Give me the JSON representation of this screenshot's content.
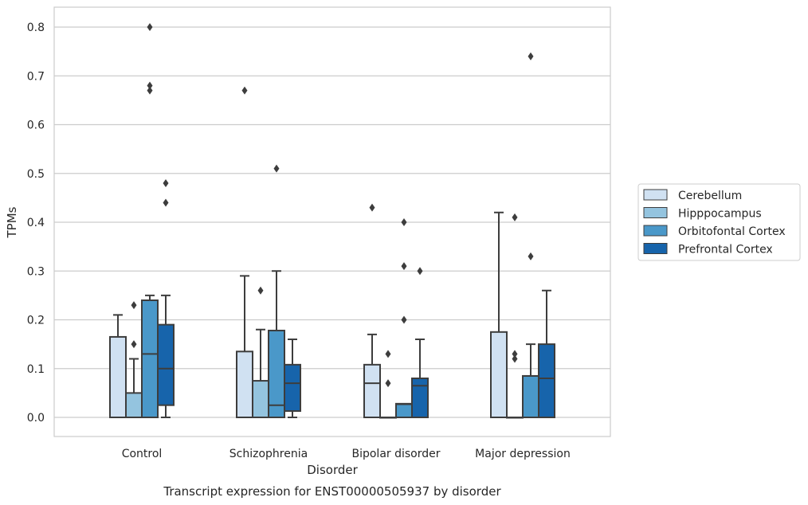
{
  "chart_data": {
    "type": "box",
    "title": "",
    "caption": "Transcript expression for ENST00000505937 by disorder",
    "xlabel": "Disorder",
    "ylabel": "TPMs",
    "ylim": [
      -0.04,
      0.84
    ],
    "yticks": [
      "0.0",
      "0.1",
      "0.2",
      "0.3",
      "0.4",
      "0.5",
      "0.6",
      "0.7",
      "0.8"
    ],
    "grid": true,
    "legend_position": "right",
    "categories": [
      "Control",
      "Schizophrenia",
      "Bipolar disorder",
      "Major depression"
    ],
    "series": [
      {
        "name": "Cerebellum",
        "color": "#d0e1f2",
        "boxes": [
          {
            "q1": 0.0,
            "median": 0.0,
            "q3": 0.165,
            "whisker_low": 0.0,
            "whisker_high": 0.21,
            "outliers": []
          },
          {
            "q1": 0.0,
            "median": 0.0,
            "q3": 0.135,
            "whisker_low": 0.0,
            "whisker_high": 0.29,
            "outliers": [
              0.67
            ]
          },
          {
            "q1": 0.0,
            "median": 0.07,
            "q3": 0.108,
            "whisker_low": 0.0,
            "whisker_high": 0.17,
            "outliers": [
              0.43
            ]
          },
          {
            "q1": 0.0,
            "median": 0.0,
            "q3": 0.175,
            "whisker_low": 0.0,
            "whisker_high": 0.42,
            "outliers": []
          }
        ]
      },
      {
        "name": "Hipppocampus",
        "color": "#94c4df",
        "boxes": [
          {
            "q1": 0.0,
            "median": 0.0,
            "q3": 0.05,
            "whisker_low": 0.0,
            "whisker_high": 0.12,
            "outliers": [
              0.15,
              0.23
            ]
          },
          {
            "q1": 0.0,
            "median": 0.0,
            "q3": 0.075,
            "whisker_low": 0.0,
            "whisker_high": 0.18,
            "outliers": [
              0.26
            ]
          },
          {
            "q1": 0.0,
            "median": 0.0,
            "q3": 0.0,
            "whisker_low": 0.0,
            "whisker_high": 0.0,
            "outliers": [
              0.07,
              0.13
            ]
          },
          {
            "q1": 0.0,
            "median": 0.0,
            "q3": 0.0,
            "whisker_low": 0.0,
            "whisker_high": 0.0,
            "outliers": [
              0.12,
              0.13,
              0.41
            ]
          }
        ]
      },
      {
        "name": "Orbitofontal Cortex",
        "color": "#4a98c9",
        "boxes": [
          {
            "q1": 0.0,
            "median": 0.13,
            "q3": 0.24,
            "whisker_low": 0.0,
            "whisker_high": 0.25,
            "outliers": [
              0.67,
              0.68,
              0.8
            ]
          },
          {
            "q1": 0.0,
            "median": 0.025,
            "q3": 0.178,
            "whisker_low": 0.0,
            "whisker_high": 0.3,
            "outliers": [
              0.51
            ]
          },
          {
            "q1": 0.0,
            "median": 0.027,
            "q3": 0.028,
            "whisker_low": 0.0,
            "whisker_high": 0.028,
            "outliers": [
              0.2,
              0.31,
              0.4
            ]
          },
          {
            "q1": 0.0,
            "median": 0.085,
            "q3": 0.085,
            "whisker_low": 0.0,
            "whisker_high": 0.15,
            "outliers": [
              0.33,
              0.74
            ]
          }
        ]
      },
      {
        "name": "Prefrontal Cortex",
        "color": "#1764ab",
        "boxes": [
          {
            "q1": 0.025,
            "median": 0.1,
            "q3": 0.19,
            "whisker_low": 0.0,
            "whisker_high": 0.25,
            "outliers": [
              0.44,
              0.48
            ]
          },
          {
            "q1": 0.013,
            "median": 0.07,
            "q3": 0.108,
            "whisker_low": 0.0,
            "whisker_high": 0.16,
            "outliers": []
          },
          {
            "q1": 0.0,
            "median": 0.065,
            "q3": 0.08,
            "whisker_low": 0.0,
            "whisker_high": 0.16,
            "outliers": [
              0.3
            ]
          },
          {
            "q1": 0.0,
            "median": 0.08,
            "q3": 0.15,
            "whisker_low": 0.0,
            "whisker_high": 0.26,
            "outliers": []
          }
        ]
      }
    ]
  }
}
